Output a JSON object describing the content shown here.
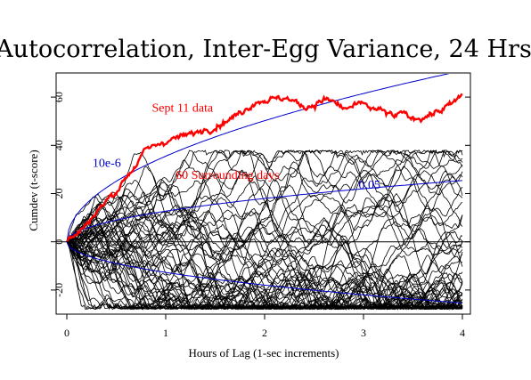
{
  "chart_data": {
    "type": "line",
    "title": "Autocorrelation, Inter-Egg Variance, 24 Hrs",
    "xlabel": "Hours of Lag (1-sec increments)",
    "ylabel": "Cumdev (t-score)",
    "xlim": [
      0,
      4
    ],
    "ylim": [
      -30,
      70
    ],
    "x_ticks": [
      0,
      1,
      2,
      3,
      4
    ],
    "y_ticks": [
      -20,
      0,
      20,
      40,
      60
    ],
    "grid": false,
    "colors": {
      "sept11": "#ff0000",
      "envelope": "#0000cc",
      "surrounding": "#000000",
      "axes": "#000000"
    },
    "envelopes": [
      {
        "label": "10e-6",
        "coef": 35.5
      },
      {
        "label": "0.05",
        "coef": 12.7
      }
    ],
    "annotations": [
      {
        "text": "Sept 11 data",
        "color": "#ff0000",
        "x": 0.86,
        "y": 54
      },
      {
        "text": "60 Surrounding days",
        "color": "#ff0000",
        "x": 1.1,
        "y": 26
      },
      {
        "text": "10e-6",
        "color": "#0000cc",
        "x": 0.26,
        "y": 31
      },
      {
        "text": "0.05",
        "color": "#0000cc",
        "x": 2.95,
        "y": 22
      }
    ],
    "series": [
      {
        "name": "Sept 11 data",
        "x": [
          0,
          0.05,
          0.1,
          0.15,
          0.2,
          0.3,
          0.4,
          0.5,
          0.6,
          0.7,
          0.8,
          0.9,
          1.0,
          1.1,
          1.2,
          1.3,
          1.4,
          1.5,
          1.6,
          1.7,
          1.8,
          1.9,
          2.0,
          2.1,
          2.2,
          2.3,
          2.4,
          2.5,
          2.6,
          2.7,
          2.8,
          2.9,
          3.0,
          3.1,
          3.2,
          3.3,
          3.4,
          3.5,
          3.6,
          3.7,
          3.8,
          3.9,
          4.0
        ],
        "y": [
          0,
          2,
          3,
          5,
          8,
          12,
          17,
          21,
          27,
          32,
          38,
          40,
          42,
          43,
          44,
          45,
          47,
          48,
          50,
          52,
          55,
          58,
          59,
          59,
          60,
          58,
          56,
          57,
          59,
          58,
          55,
          56,
          57,
          55,
          54,
          52,
          53,
          51,
          52,
          53,
          55,
          57,
          61
        ]
      }
    ]
  }
}
